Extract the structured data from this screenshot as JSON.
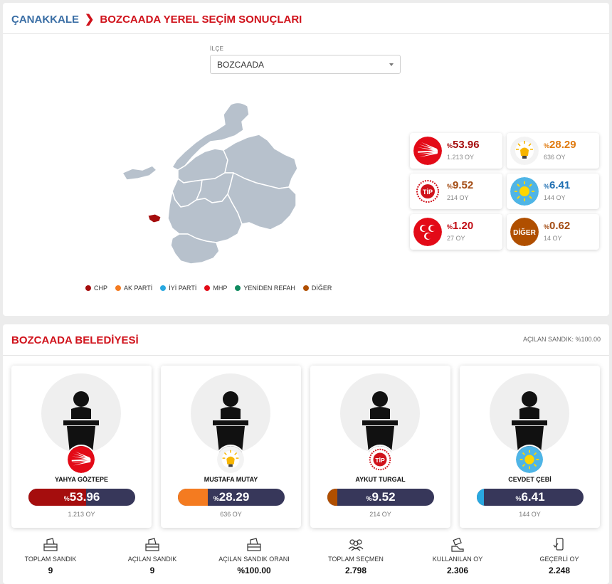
{
  "breadcrumb": {
    "province": "ÇANAKKALE",
    "page": "BOZCAADA YEREL SEÇİM SONUÇLARI"
  },
  "filter": {
    "label": "İLÇE",
    "selected": "BOZCAADA"
  },
  "legend": [
    {
      "label": "CHP",
      "color": "#a50d0d"
    },
    {
      "label": "AK PARTİ",
      "color": "#f47b20"
    },
    {
      "label": "İYİ PARTİ",
      "color": "#29a8e0"
    },
    {
      "label": "MHP",
      "color": "#e30a17"
    },
    {
      "label": "YENİDEN REFAH",
      "color": "#0f8a5f"
    },
    {
      "label": "DİĞER",
      "color": "#b04f00"
    }
  ],
  "party_results": [
    {
      "party": "chp",
      "pct_prefix": "%",
      "pct": "53.96",
      "votes": "1.213 OY",
      "color": "#a50d0d"
    },
    {
      "party": "akp",
      "pct_prefix": "%",
      "pct": "28.29",
      "votes": "636 OY",
      "color": "#e07b10"
    },
    {
      "party": "tip",
      "pct_prefix": "%",
      "pct": "9.52",
      "votes": "214 OY",
      "color": "#a34b12"
    },
    {
      "party": "iyi",
      "pct_prefix": "%",
      "pct": "6.41",
      "votes": "144 OY",
      "color": "#1f6fb2"
    },
    {
      "party": "mhp",
      "pct_prefix": "%",
      "pct": "1.20",
      "votes": "27 OY",
      "color": "#c10e16"
    },
    {
      "party": "diger",
      "pct_prefix": "%",
      "pct": "0.62",
      "votes": "14 OY",
      "color": "#a34b12",
      "logo_text": "DİĞER"
    }
  ],
  "municipality": {
    "title": "BOZCAADA BELEDİYESİ",
    "opened_ballot": "AÇILAN SANDIK: %100.00"
  },
  "candidates": [
    {
      "name": "YAHYA GÖZTEPE",
      "pct_prefix": "%",
      "pct": "53.96",
      "share": 53.96,
      "votes": "1.213 OY",
      "color": "#a50d0d",
      "party": "chp"
    },
    {
      "name": "MUSTAFA MUTAY",
      "pct_prefix": "%",
      "pct": "28.29",
      "share": 28.29,
      "votes": "636 OY",
      "color": "#f47b20",
      "party": "akp"
    },
    {
      "name": "AYKUT TURGAL",
      "pct_prefix": "%",
      "pct": "9.52",
      "share": 9.52,
      "votes": "214 OY",
      "color": "#b04f00",
      "party": "tip"
    },
    {
      "name": "CEVDET ÇEBİ",
      "pct_prefix": "%",
      "pct": "6.41",
      "share": 6.41,
      "votes": "144 OY",
      "color": "#29a8e0",
      "party": "iyi"
    }
  ],
  "stats": [
    {
      "label": "TOPLAM SANDIK",
      "value": "9",
      "icon": "ballot-box-icon"
    },
    {
      "label": "AÇILAN SANDIK",
      "value": "9",
      "icon": "ballot-box-icon"
    },
    {
      "label": "AÇILAN SANDIK ORANI",
      "value": "%100.00",
      "icon": "ballot-box-icon"
    },
    {
      "label": "TOPLAM SEÇMEN",
      "value": "2.798",
      "icon": "voters-icon"
    },
    {
      "label": "KULLANILAN OY",
      "value": "2.306",
      "icon": "vote-hand-icon"
    },
    {
      "label": "GEÇERLİ OY",
      "value": "2.248",
      "icon": "phone-check-icon"
    }
  ]
}
